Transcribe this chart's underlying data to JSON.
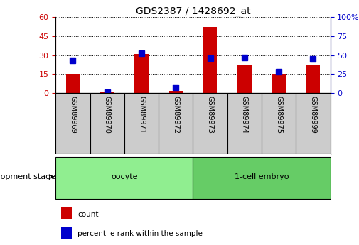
{
  "title": "GDS2387 / 1428692_at",
  "samples": [
    "GSM89969",
    "GSM89970",
    "GSM89971",
    "GSM89972",
    "GSM89973",
    "GSM89974",
    "GSM89975",
    "GSM89999"
  ],
  "count_values": [
    15,
    0.5,
    31,
    1.5,
    52,
    22,
    15,
    22
  ],
  "percentile_values": [
    43,
    1,
    52,
    8,
    46,
    47,
    28,
    45
  ],
  "groups": [
    {
      "label": "oocyte",
      "indices": [
        0,
        3
      ],
      "color": "#90EE90"
    },
    {
      "label": "1-cell embryo",
      "indices": [
        4,
        7
      ],
      "color": "#66CC66"
    }
  ],
  "left_yticks": [
    0,
    15,
    30,
    45,
    60
  ],
  "right_yticks": [
    0,
    25,
    50,
    75,
    100
  ],
  "left_color": "#CC0000",
  "right_color": "#0000CC",
  "bar_color": "#CC0000",
  "marker_color": "#0000CC",
  "bar_width": 0.4,
  "marker_size": 6,
  "label_bg_color": "#CCCCCC",
  "legend_count_label": "count",
  "legend_percentile_label": "percentile rank within the sample",
  "dev_stage_label": "development stage",
  "left_ylim": [
    0,
    60
  ],
  "right_ylim": [
    0,
    100
  ]
}
